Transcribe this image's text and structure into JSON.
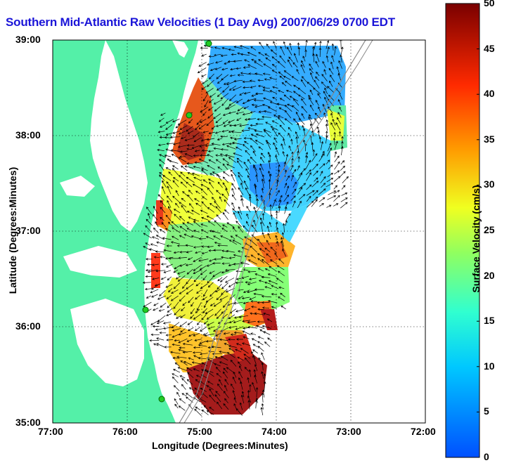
{
  "title": "Southern Mid-Atlantic Raw Velocities (1 Day Avg) 2007/06/29 0700 EDT",
  "xlabel": "Longitude (Degrees:Minutes)",
  "ylabel": "Latitude (Degrees:Minutes)",
  "colorbar": {
    "label": "Surface Velocity (cm/s)",
    "ticks": [
      "0",
      "5",
      "10",
      "15",
      "20",
      "25",
      "30",
      "35",
      "40",
      "45",
      "50"
    ],
    "range": [
      0,
      50
    ]
  },
  "axes": {
    "lon_ticks": [
      "77:00",
      "76:00",
      "75:00",
      "74:00",
      "73:00",
      "72:00"
    ],
    "lat_ticks": [
      "39:00",
      "38:00",
      "37:00",
      "36:00",
      "35:00"
    ]
  },
  "colors": {
    "land": "#54f0a8",
    "water": "#ffffff",
    "title": "#1a14d8",
    "site_marker": "#22cc22"
  }
}
